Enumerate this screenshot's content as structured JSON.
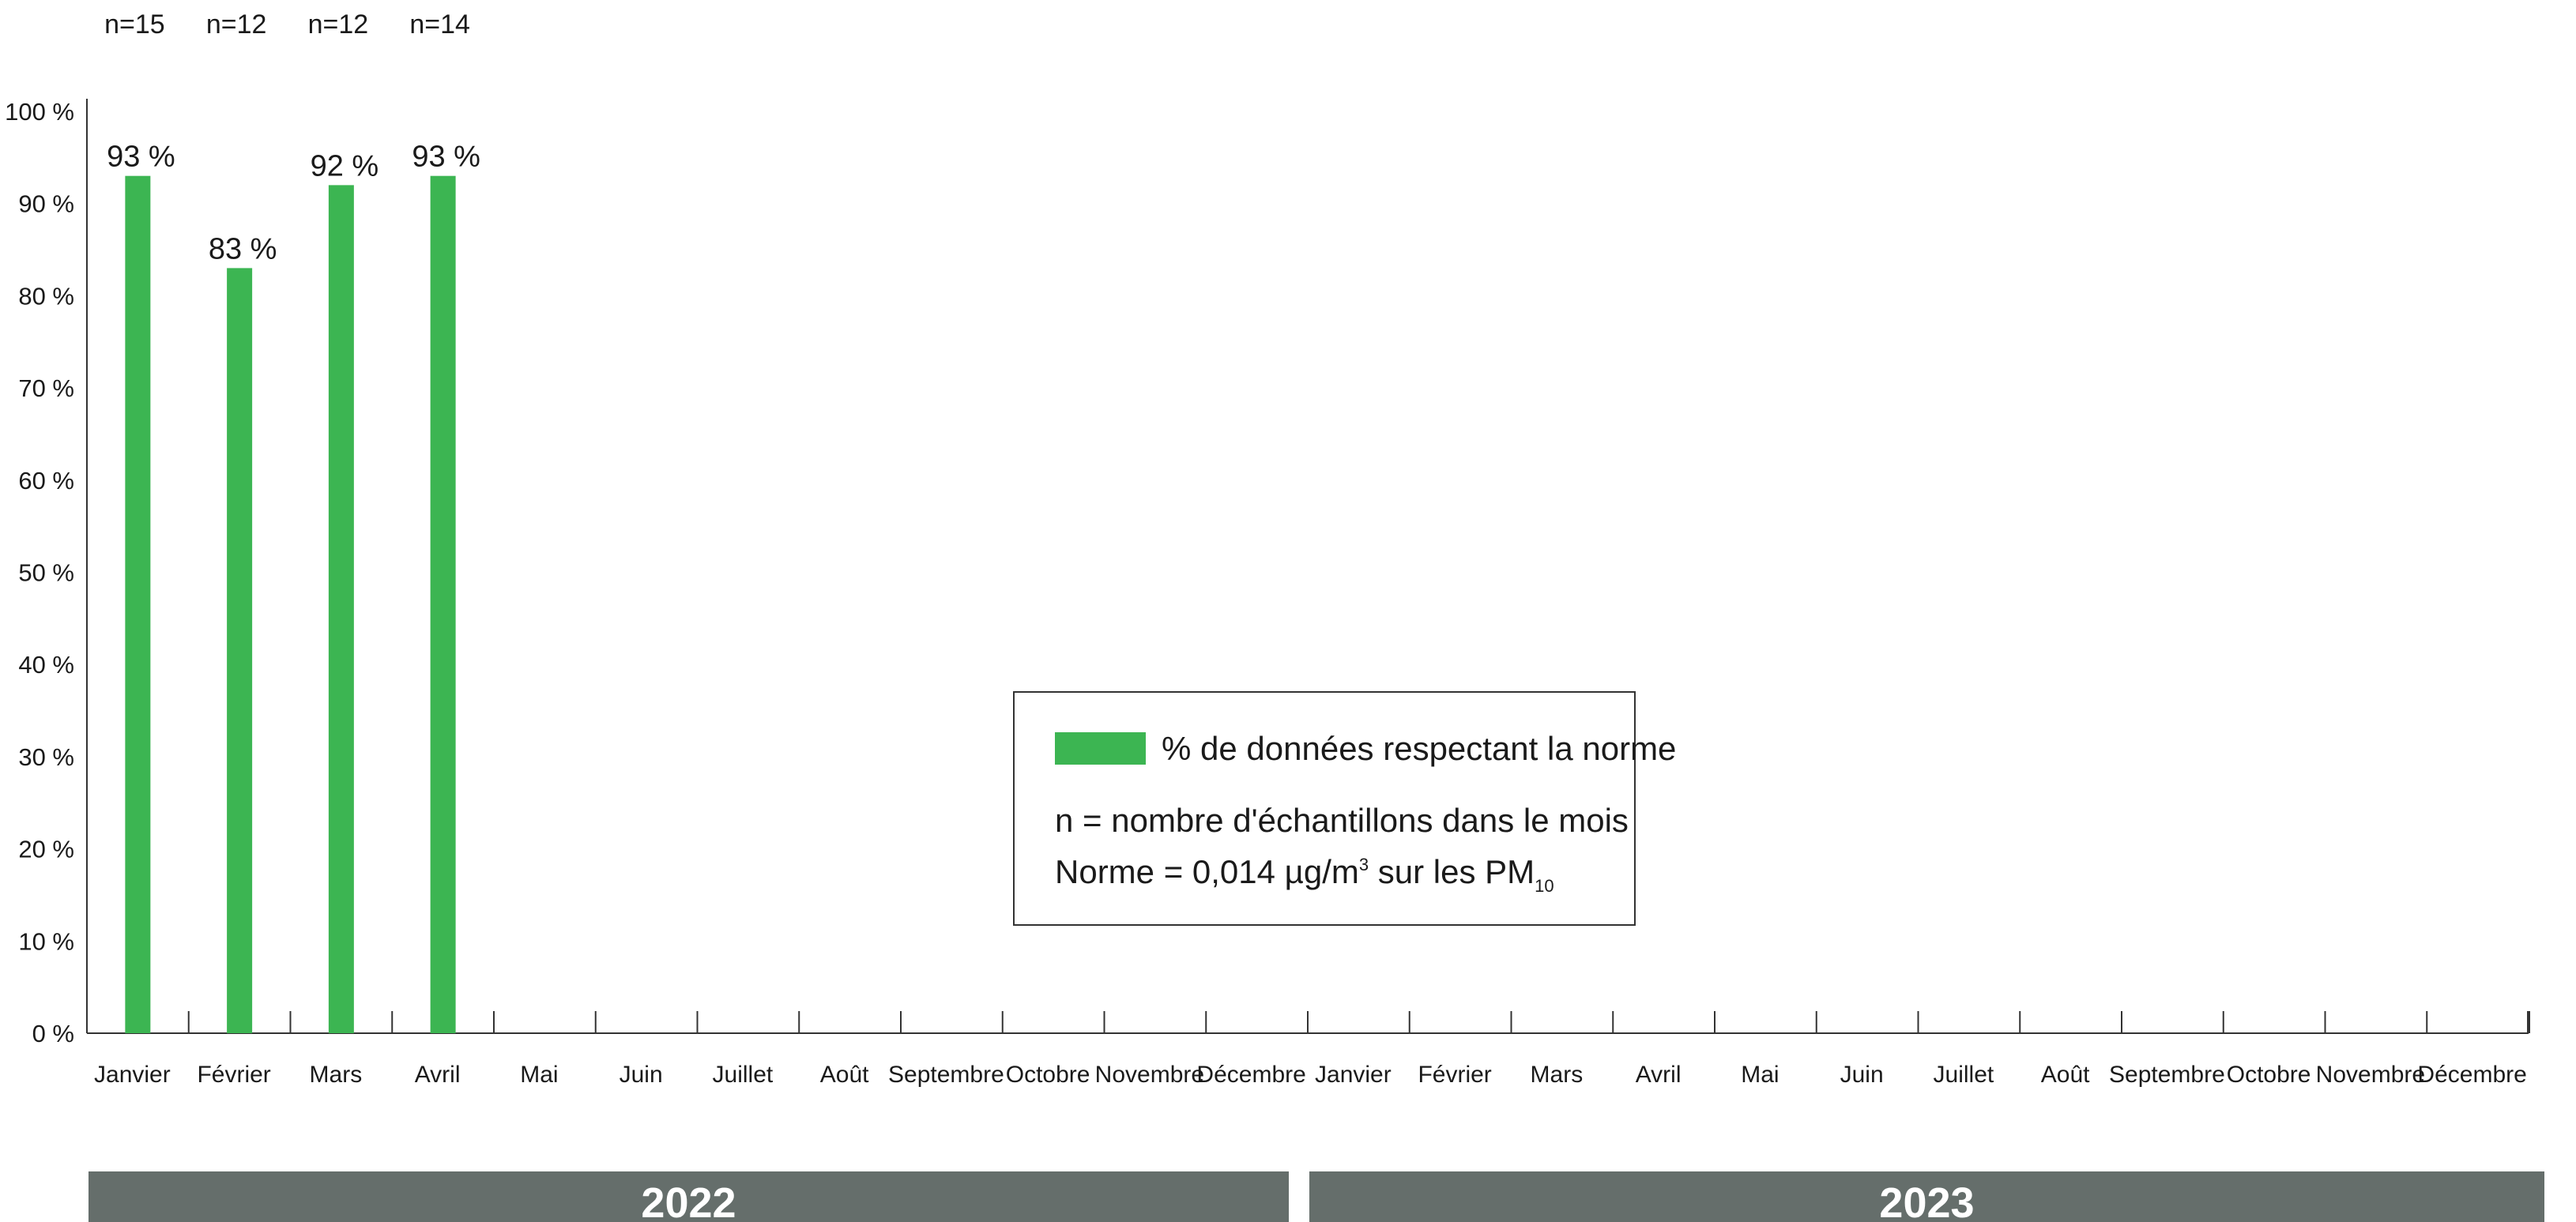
{
  "chart_data": {
    "type": "bar",
    "ylim": [
      0,
      100
    ],
    "yticks": [
      {
        "value": 0,
        "label": "0 %"
      },
      {
        "value": 10,
        "label": "10 %"
      },
      {
        "value": 20,
        "label": "20 %"
      },
      {
        "value": 30,
        "label": "30 %"
      },
      {
        "value": 40,
        "label": "40 %"
      },
      {
        "value": 50,
        "label": "50 %"
      },
      {
        "value": 60,
        "label": "60 %"
      },
      {
        "value": 70,
        "label": "70 %"
      },
      {
        "value": 80,
        "label": "80 %"
      },
      {
        "value": 90,
        "label": "90 %"
      },
      {
        "value": 100,
        "label": "100 %"
      }
    ],
    "categories": [
      "Janvier",
      "Février",
      "Mars",
      "Avril",
      "Mai",
      "Juin",
      "Juillet",
      "Août",
      "Septembre",
      "Octobre",
      "Novembre",
      "Décembre",
      "Janvier",
      "Février",
      "Mars",
      "Avril",
      "Mai",
      "Juin",
      "Juillet",
      "Août",
      "Septembre",
      "Octobre",
      "Novembre",
      "Décembre"
    ],
    "groups": [
      {
        "label": "2022",
        "start": 0,
        "end": 11
      },
      {
        "label": "2023",
        "start": 12,
        "end": 23
      }
    ],
    "series": [
      {
        "name": "% de données respectant la norme",
        "color": "#3cb552",
        "values": [
          93,
          83,
          92,
          93,
          null,
          null,
          null,
          null,
          null,
          null,
          null,
          null,
          null,
          null,
          null,
          null,
          null,
          null,
          null,
          null,
          null,
          null,
          null,
          null
        ],
        "labels": [
          "93 %",
          "83 %",
          "92 %",
          "93 %"
        ]
      }
    ],
    "sample_counts": [
      "n=15",
      "n=12",
      "n=12",
      "n=14"
    ],
    "legend": {
      "series_label": "% de données respectant la norme",
      "note1": "n = nombre d'échantillons dans le mois",
      "note2_a": "Norme = 0,014 µg/m",
      "note2_sup": "3",
      "note2_b": " sur les PM",
      "note2_sub": "10",
      "placement": "center"
    },
    "colors": {
      "bar": "#3cb552",
      "year_band": "#656e6b",
      "axis": "#333333"
    },
    "grid": false
  }
}
